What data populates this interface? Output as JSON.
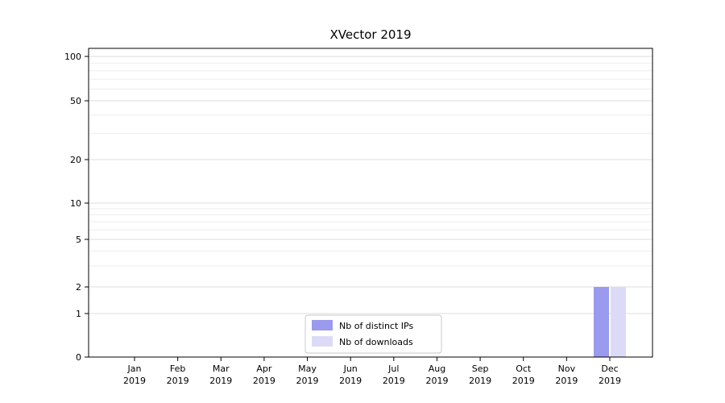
{
  "chart_data": {
    "type": "bar",
    "title": "XVector 2019",
    "categories": [
      "Jan",
      "Feb",
      "Mar",
      "Apr",
      "May",
      "Jun",
      "Jul",
      "Aug",
      "Sep",
      "Oct",
      "Nov",
      "Dec"
    ],
    "category_year": "2019",
    "series": [
      {
        "name": "Nb of distinct IPs",
        "color": "#9a9aee",
        "values": [
          0,
          0,
          0,
          0,
          0,
          0,
          0,
          0,
          0,
          0,
          0,
          2
        ]
      },
      {
        "name": "Nb of downloads",
        "color": "#dbdbf8",
        "values": [
          0,
          0,
          0,
          0,
          0,
          0,
          0,
          0,
          0,
          0,
          0,
          2
        ]
      }
    ],
    "xlabel": "",
    "ylabel": "",
    "yticks": [
      0,
      1,
      2,
      5,
      10,
      20,
      50,
      100
    ],
    "ylim": [
      0,
      100
    ],
    "yscale": "symlog",
    "grid": true,
    "legend_position": "bottom-center",
    "colors": {
      "major_grid": "#dcdcdc",
      "minor_grid": "#ededed",
      "axis": "#000000",
      "legend_border": "#c8c8c8",
      "legend_background": "#ffffff"
    }
  }
}
